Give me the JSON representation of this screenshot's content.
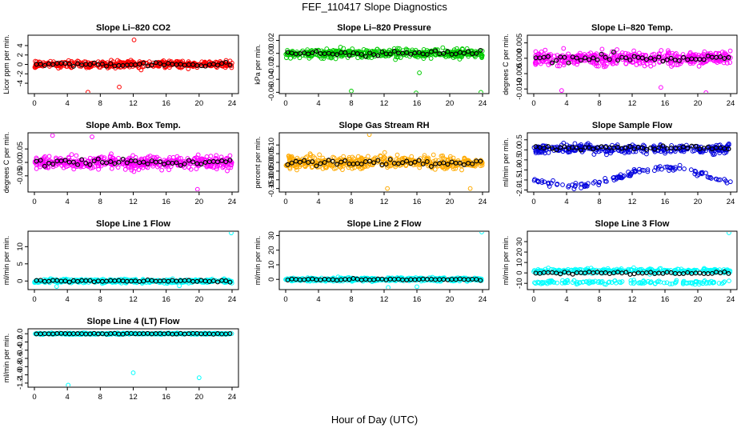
{
  "page": {
    "title": "FEF_110417  Slope Diagnostics",
    "xlabel": "Hour of Day (UTC)"
  },
  "chart_data": [
    {
      "type": "scatter",
      "title": "Slope Li–820 CO2",
      "ylabel": "Licor ppm per min.",
      "color": "#ff0000",
      "xlim": [
        0,
        24
      ],
      "xticks": [
        0,
        4,
        8,
        12,
        16,
        20,
        24
      ],
      "ylim": [
        -6.2,
        6.2
      ],
      "yticks": [
        -4,
        -2,
        0,
        2,
        4
      ],
      "spread": 1.3,
      "outliers": [
        [
          6.5,
          -5.9
        ],
        [
          12.1,
          5.2
        ],
        [
          10.3,
          -4.8
        ]
      ],
      "ref_points": []
    },
    {
      "type": "scatter",
      "title": "Slope Li–820 Pressure",
      "ylabel": "kPa per min.",
      "color": "#00cc00",
      "xlim": [
        0,
        24
      ],
      "xticks": [
        0,
        4,
        8,
        12,
        16,
        20,
        24
      ],
      "ylim": [
        -0.062,
        0.028
      ],
      "yticks": [
        -0.06,
        -0.04,
        -0.02,
        0.0,
        0.02
      ],
      "spread": 0.012,
      "outliers": [
        [
          8.0,
          -0.058
        ],
        [
          15.9,
          -0.061
        ],
        [
          23.8,
          -0.06
        ],
        [
          16.3,
          -0.03
        ]
      ],
      "ref_points": []
    },
    {
      "type": "scatter",
      "title": "Slope Li–820 Temp.",
      "ylabel": "degrees C per min.",
      "color": "#ff00ff",
      "xlim": [
        0,
        24
      ],
      "xticks": [
        0,
        4,
        8,
        12,
        16,
        20,
        24
      ],
      "ylim": [
        -0.0115,
        0.0075
      ],
      "yticks": [
        -0.01,
        -0.005,
        0.0,
        0.005
      ],
      "spread": 0.004,
      "outliers": [
        [
          3.4,
          -0.0105
        ],
        [
          15.5,
          -0.0095
        ],
        [
          21.0,
          -0.0112
        ]
      ],
      "ref_points": []
    },
    {
      "type": "scatter",
      "title": "Slope Amb. Box Temp.",
      "ylabel": "degrees C per min.",
      "color": "#ff00ff",
      "xlim": [
        0,
        24
      ],
      "xticks": [
        0,
        4,
        8,
        12,
        16,
        20,
        24
      ],
      "ylim": [
        -0.11,
        0.11
      ],
      "yticks": [
        -0.05,
        0.0,
        0.05
      ],
      "spread": 0.04,
      "outliers": [
        [
          19.8,
          -0.1
        ],
        [
          2.2,
          0.1
        ],
        [
          7.0,
          0.095
        ]
      ],
      "ref_points": []
    },
    {
      "type": "scatter",
      "title": "Slope Gas Stream RH",
      "ylabel": "percent per min.",
      "color": "#ffaa00",
      "xlim": [
        0,
        24
      ],
      "xticks": [
        0,
        4,
        8,
        12,
        16,
        20,
        24
      ],
      "ylim": [
        -0.17,
        0.17
      ],
      "yticks": [
        -0.15,
        -0.1,
        -0.05,
        0.0,
        0.05,
        0.1
      ],
      "spread": 0.06,
      "outliers": [
        [
          10.2,
          0.16
        ],
        [
          12.4,
          -0.15
        ],
        [
          22.5,
          -0.15
        ]
      ],
      "ref_points": []
    },
    {
      "type": "scatter",
      "title": "Slope Sample Flow",
      "ylabel": "ml/min per min.",
      "color": "#0000dd",
      "xlim": [
        0,
        24
      ],
      "xticks": [
        0,
        4,
        8,
        12,
        16,
        20,
        24
      ],
      "ylim": [
        -2.1,
        0.85
      ],
      "yticks": [
        -2.0,
        -1.5,
        -1.0,
        -0.5,
        0.0,
        0.5
      ],
      "spread": 0.25,
      "outliers": [],
      "ref_points": []
    },
    {
      "type": "scatter",
      "title": "Slope Line 1 Flow",
      "ylabel": "ml/min per min.",
      "color": "#00ffff",
      "xlim": [
        0,
        24
      ],
      "xticks": [
        0,
        4,
        8,
        12,
        16,
        20,
        24
      ],
      "ylim": [
        -2.5,
        14.5
      ],
      "yticks": [
        0,
        5,
        10
      ],
      "spread": 0.9,
      "outliers": [
        [
          23.9,
          14.0
        ],
        [
          2.7,
          -1.6
        ],
        [
          17.6,
          -1.4
        ]
      ],
      "ref_points": []
    },
    {
      "type": "scatter",
      "title": "Slope Line 2 Flow",
      "ylabel": "ml/min per min.",
      "color": "#00ffff",
      "xlim": [
        0,
        24
      ],
      "xticks": [
        0,
        4,
        8,
        12,
        16,
        20,
        24
      ],
      "ylim": [
        -7,
        33
      ],
      "yticks": [
        0,
        10,
        20,
        30
      ],
      "spread": 2.0,
      "outliers": [
        [
          23.9,
          32.5
        ],
        [
          12.5,
          -5.5
        ],
        [
          16.0,
          -5.0
        ]
      ],
      "ref_points": []
    },
    {
      "type": "scatter",
      "title": "Slope Line 3 Flow",
      "ylabel": "ml/min per min.",
      "color": "#00ffff",
      "xlim": [
        0,
        24
      ],
      "xticks": [
        0,
        4,
        8,
        12,
        16,
        20,
        24
      ],
      "ylim": [
        -16,
        40
      ],
      "yticks": [
        -10,
        0,
        10,
        20,
        30
      ],
      "spread": 3.5,
      "outliers": [
        [
          23.8,
          38.5
        ]
      ],
      "ref_points": []
    },
    {
      "type": "scatter",
      "title": "Slope Line 4 (LT) Flow",
      "ylabel": "ml/min per min.",
      "color": "#00ffff",
      "xlim": [
        0,
        24
      ],
      "xticks": [
        0,
        4,
        8,
        12,
        16,
        20,
        24
      ],
      "ylim": [
        -1.3,
        0.12
      ],
      "yticks": [
        -1.2,
        -1.0,
        -0.8,
        -0.6,
        -0.4,
        -0.2,
        0.0
      ],
      "spread": 0.03,
      "outliers": [
        [
          4.1,
          -1.25
        ],
        [
          12.0,
          -0.95
        ],
        [
          20.0,
          -1.07
        ]
      ],
      "ref_points": []
    }
  ]
}
